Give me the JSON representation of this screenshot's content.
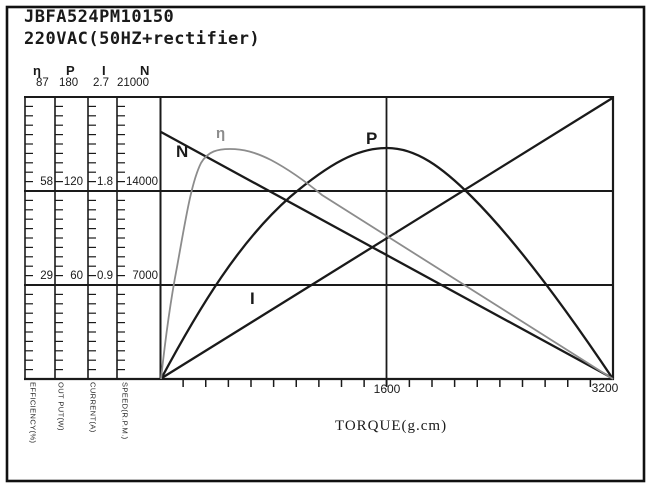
{
  "figure": {
    "title": "JBFA524PM10150",
    "subtitle": "220VAC(50HZ+rectifier)"
  },
  "colors": {
    "ink": "#1a1a1a",
    "eta_curve": "#8c8c8c",
    "paper": "#ffffff"
  },
  "left_scales": [
    {
      "symbol": "η",
      "values": [
        "87",
        "58",
        "29"
      ],
      "axis_label": "EFFICIENCY(%)"
    },
    {
      "symbol": "P",
      "values": [
        "180",
        "120",
        "60"
      ],
      "axis_label": "OUT PUT(W)"
    },
    {
      "symbol": "I",
      "values": [
        "2.7",
        "1.8",
        "0.9"
      ],
      "axis_label": "CURRENT(A)"
    },
    {
      "symbol": "N",
      "values": [
        "21000",
        "14000",
        "7000"
      ],
      "axis_label": "SPEED(R.P.M.)"
    }
  ],
  "x_axis": {
    "title": "TORQUE(g.cm)",
    "tick_mid": "1600",
    "tick_max": "3200"
  },
  "curve_labels": {
    "speed": "N",
    "efficiency": "η",
    "power": "P",
    "current": "I"
  },
  "chart_data": {
    "type": "line",
    "title": "JBFA524PM10150 220VAC(50HZ+rectifier)",
    "xlabel": "TORQUE(g.cm)",
    "xlim": [
      0,
      3200
    ],
    "x_tick_labels": [
      1600,
      3200
    ],
    "grid": true,
    "legend_position": "inline-curve-labels",
    "y_axes": [
      {
        "symbol": "η",
        "name": "EFFICIENCY(%)",
        "range": [
          0,
          87
        ],
        "ticks": [
          29,
          58,
          87
        ]
      },
      {
        "symbol": "P",
        "name": "OUT PUT(W)",
        "range": [
          0,
          180
        ],
        "ticks": [
          60,
          120,
          180
        ]
      },
      {
        "symbol": "I",
        "name": "CURRENT(A)",
        "range": [
          0,
          2.7
        ],
        "ticks": [
          0.9,
          1.8,
          2.7
        ]
      },
      {
        "symbol": "N",
        "name": "SPEED(R.P.M.)",
        "range": [
          0,
          21000
        ],
        "ticks": [
          7000,
          14000,
          21000
        ]
      }
    ],
    "x_torque": [
      0,
      200,
      400,
      600,
      800,
      1200,
      1600,
      2000,
      2400,
      2800,
      3200
    ],
    "series": [
      {
        "name": "N",
        "axis": "SPEED(R.P.M.)",
        "color": "#1a1a1a",
        "shape": "straight-descending",
        "values": [
          18400,
          17250,
          16100,
          14950,
          13800,
          11500,
          9200,
          6900,
          4600,
          2300,
          0
        ]
      },
      {
        "name": "η",
        "axis": "EFFICIENCY(%)",
        "color": "#8c8c8c",
        "shape": "steep-rise-peak-decline",
        "values": [
          0,
          60,
          71,
          71,
          67,
          55,
          44,
          33,
          22,
          11,
          0
        ]
      },
      {
        "name": "P",
        "axis": "OUT PUT(W)",
        "color": "#1a1a1a",
        "shape": "parabola-peak-1600",
        "values": [
          0,
          35,
          65,
          90,
          111,
          139,
          148,
          139,
          111,
          65,
          0
        ]
      },
      {
        "name": "I",
        "axis": "CURRENT(A)",
        "color": "#1a1a1a",
        "shape": "straight-ascending",
        "values": [
          0,
          0.17,
          0.34,
          0.51,
          0.68,
          1.01,
          1.35,
          1.69,
          2.03,
          2.36,
          2.7
        ]
      }
    ]
  }
}
